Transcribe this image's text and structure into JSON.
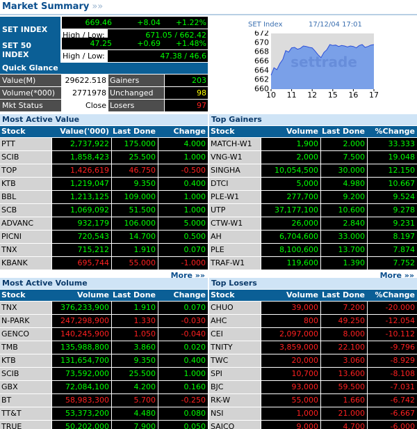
{
  "header": {
    "title": "Market Summary",
    "arrow": "»»"
  },
  "set_index": {
    "label": "SET INDEX",
    "value": "669.46",
    "change": "+8.04",
    "pct": "+1.22%",
    "hl_label": "High / Low:",
    "hl": "671.05 / 662.42"
  },
  "set50_index": {
    "label": "SET 50 INDEX",
    "value": "47.25",
    "change": "+0.69",
    "pct": "+1.48%",
    "hl_label": "High / Low:",
    "hl": "47.38 / 46.6"
  },
  "quick_glance": {
    "title": "Quick Glance",
    "rows": [
      {
        "label": "Value(M)",
        "value": "29622.518",
        "label2": "Gainers",
        "value2": "203"
      },
      {
        "label": "Volume(*000)",
        "value": "2771978",
        "label2": "Unchanged",
        "value2": "98"
      },
      {
        "label": "Mkt Status",
        "value": "Close",
        "label2": "Losers",
        "value2": "97"
      }
    ]
  },
  "chart": {
    "name": "SET Index",
    "datetime": "17/12/04 17:01",
    "watermark": "settrade",
    "y_ticks": [
      "672",
      "670",
      "668",
      "666",
      "664",
      "662",
      "660"
    ],
    "x_ticks": [
      "10",
      "11",
      "12",
      "15",
      "16",
      "17"
    ]
  },
  "chart_data": {
    "type": "area",
    "title": "SET Index",
    "x": [
      0,
      2,
      4,
      6,
      8,
      10,
      12,
      14,
      16,
      18,
      20,
      22,
      24,
      26,
      28,
      30,
      32,
      34,
      36,
      38,
      40,
      42,
      44,
      46,
      48,
      50,
      52,
      54,
      56,
      58,
      60,
      62,
      64,
      66,
      68,
      70
    ],
    "values": [
      663.0,
      664.6,
      664.2,
      665.5,
      666.4,
      668.3,
      668.0,
      668.9,
      669.0,
      668.6,
      668.8,
      669.3,
      669.2,
      669.0,
      668.9,
      668.2,
      667.4,
      666.8,
      667.9,
      668.5,
      669.6,
      669.4,
      669.5,
      669.2,
      669.4,
      669.3,
      669.1,
      669.3,
      669.2,
      668.9,
      669.4,
      669.6,
      669.0,
      669.2,
      669.5,
      669.6
    ],
    "ylim": [
      660,
      672
    ],
    "x_tick_labels": [
      "10",
      "11",
      "12",
      "15",
      "16",
      "17"
    ],
    "colors": {
      "area": "#7aa0e8",
      "line": "#2c4fd8",
      "background": "#dcdcdc"
    }
  },
  "tables": {
    "most_active_value": {
      "title": "Most Active Value",
      "headers": [
        "Stock",
        "Value('000)",
        "Last Done",
        "Change"
      ],
      "rows": [
        {
          "stock": "PTT",
          "c1": "2,737,922",
          "c2": "175.000",
          "c3": "4.000",
          "dir": "up"
        },
        {
          "stock": "SCIB",
          "c1": "1,858,423",
          "c2": "25.500",
          "c3": "1.000",
          "dir": "up"
        },
        {
          "stock": "TOP",
          "c1": "1,426,619",
          "c2": "46.750",
          "c3": "-0.500",
          "dir": "down"
        },
        {
          "stock": "KTB",
          "c1": "1,219,047",
          "c2": "9.350",
          "c3": "0.400",
          "dir": "up"
        },
        {
          "stock": "BBL",
          "c1": "1,213,125",
          "c2": "109.000",
          "c3": "1.000",
          "dir": "up"
        },
        {
          "stock": "SCB",
          "c1": "1,069,092",
          "c2": "51.500",
          "c3": "1.000",
          "dir": "up"
        },
        {
          "stock": "ADVANC",
          "c1": "932,179",
          "c2": "106.000",
          "c3": "5.000",
          "dir": "up"
        },
        {
          "stock": "PICNI",
          "c1": "720,543",
          "c2": "14.700",
          "c3": "0.500",
          "dir": "up"
        },
        {
          "stock": "TNX",
          "c1": "715,212",
          "c2": "1.910",
          "c3": "0.070",
          "dir": "up"
        },
        {
          "stock": "KBANK",
          "c1": "695,744",
          "c2": "55.000",
          "c3": "-1.000",
          "dir": "down"
        }
      ],
      "more": "More »»"
    },
    "top_gainers": {
      "title": "Top Gainers",
      "headers": [
        "Stock",
        "Volume",
        "Last Done",
        "%Change"
      ],
      "rows": [
        {
          "stock": "MATCH-W1",
          "c1": "1,900",
          "c2": "2.000",
          "c3": "33.333",
          "dir": "up"
        },
        {
          "stock": "VNG-W1",
          "c1": "2,000",
          "c2": "7.500",
          "c3": "19.048",
          "dir": "up"
        },
        {
          "stock": "SINGHA",
          "c1": "10,054,500",
          "c2": "30.000",
          "c3": "12.150",
          "dir": "up"
        },
        {
          "stock": "DTCI",
          "c1": "5,000",
          "c2": "4.980",
          "c3": "10.667",
          "dir": "up"
        },
        {
          "stock": "PLE-W1",
          "c1": "277,700",
          "c2": "9.200",
          "c3": "9.524",
          "dir": "up"
        },
        {
          "stock": "UTP",
          "c1": "37,177,100",
          "c2": "10.600",
          "c3": "9.278",
          "dir": "up"
        },
        {
          "stock": "CTW-W1",
          "c1": "26,000",
          "c2": "2.840",
          "c3": "9.231",
          "dir": "up"
        },
        {
          "stock": "AH",
          "c1": "6,704,600",
          "c2": "33.000",
          "c3": "8.197",
          "dir": "up"
        },
        {
          "stock": "PLE",
          "c1": "8,100,600",
          "c2": "13.700",
          "c3": "7.874",
          "dir": "up"
        },
        {
          "stock": "TRAF-W1",
          "c1": "119,600",
          "c2": "1.390",
          "c3": "7.752",
          "dir": "up"
        }
      ],
      "more": "More »»"
    },
    "most_active_volume": {
      "title": "Most Active Volume",
      "headers": [
        "Stock",
        "Volume",
        "Last Done",
        "Change"
      ],
      "rows": [
        {
          "stock": "TNX",
          "c1": "376,233,900",
          "c2": "1.910",
          "c3": "0.070",
          "dir": "up"
        },
        {
          "stock": "N-PARK",
          "c1": "247,298,900",
          "c2": "1.330",
          "c3": "-0.030",
          "dir": "down"
        },
        {
          "stock": "GENCO",
          "c1": "140,245,900",
          "c2": "1.050",
          "c3": "-0.040",
          "dir": "down"
        },
        {
          "stock": "TMB",
          "c1": "135,988,800",
          "c2": "3.860",
          "c3": "0.020",
          "dir": "up"
        },
        {
          "stock": "KTB",
          "c1": "131,654,700",
          "c2": "9.350",
          "c3": "0.400",
          "dir": "up"
        },
        {
          "stock": "SCIB",
          "c1": "73,592,000",
          "c2": "25.500",
          "c3": "1.000",
          "dir": "up"
        },
        {
          "stock": "GBX",
          "c1": "72,084,100",
          "c2": "4.200",
          "c3": "0.160",
          "dir": "up"
        },
        {
          "stock": "BT",
          "c1": "58,983,300",
          "c2": "5.700",
          "c3": "-0.250",
          "dir": "down"
        },
        {
          "stock": "TT&T",
          "c1": "53,373,200",
          "c2": "4.480",
          "c3": "0.080",
          "dir": "up"
        },
        {
          "stock": "TRUE",
          "c1": "50,202,000",
          "c2": "7.900",
          "c3": "0.050",
          "dir": "up"
        }
      ]
    },
    "top_losers": {
      "title": "Top Losers",
      "headers": [
        "Stock",
        "Volume",
        "Last Done",
        "%Change"
      ],
      "rows": [
        {
          "stock": "CHUO",
          "c1": "39,000",
          "c2": "7.200",
          "c3": "-20.000",
          "dir": "down"
        },
        {
          "stock": "AHC",
          "c1": "800",
          "c2": "49.250",
          "c3": "-12.054",
          "dir": "down"
        },
        {
          "stock": "CEI",
          "c1": "2,097,000",
          "c2": "8.000",
          "c3": "-10.112",
          "dir": "down"
        },
        {
          "stock": "TNITY",
          "c1": "3,859,000",
          "c2": "22.100",
          "c3": "-9.796",
          "dir": "down"
        },
        {
          "stock": "TWC",
          "c1": "20,000",
          "c2": "3.060",
          "c3": "-8.929",
          "dir": "down"
        },
        {
          "stock": "SPI",
          "c1": "10,700",
          "c2": "13.600",
          "c3": "-8.108",
          "dir": "down"
        },
        {
          "stock": "BJC",
          "c1": "93,000",
          "c2": "59.500",
          "c3": "-7.031",
          "dir": "down"
        },
        {
          "stock": "RK-W",
          "c1": "55,000",
          "c2": "1.660",
          "c3": "-6.742",
          "dir": "down"
        },
        {
          "stock": "NSI",
          "c1": "1,000",
          "c2": "21.000",
          "c3": "-6.667",
          "dir": "down"
        },
        {
          "stock": "SAICO",
          "c1": "9,000",
          "c2": "4.700",
          "c3": "-6.000",
          "dir": "down"
        }
      ]
    }
  },
  "colors": {
    "up": "#00ff00",
    "down": "#ff2020",
    "header_blue": "#0b5f96",
    "panel_head": "#cfe4f6"
  }
}
